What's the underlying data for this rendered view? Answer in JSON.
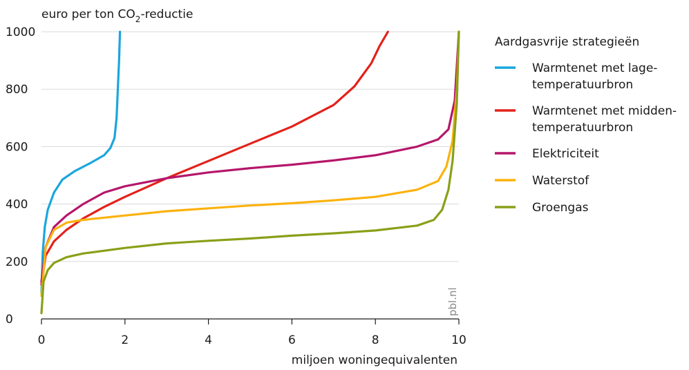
{
  "chart_data": {
    "type": "line",
    "ylabel_prefix": "euro per ton CO",
    "ylabel_sub": "2",
    "ylabel_suffix": "-reductie",
    "xlabel": "miljoen woningequivalenten",
    "source": "pbl.nl",
    "xlim": [
      0,
      10
    ],
    "ylim": [
      0,
      1000
    ],
    "x_ticks": [
      0,
      2,
      4,
      6,
      8,
      10
    ],
    "y_ticks": [
      0,
      200,
      400,
      600,
      800,
      1000
    ],
    "grid": "horizontal",
    "legend_title": "Aardgasvrije strategieën",
    "legend_position": "right",
    "series": [
      {
        "name_lines": [
          "Warmtenet met lage-",
          "temperatuurbron"
        ],
        "color": "#1aa6dd",
        "points": [
          [
            0,
            90
          ],
          [
            0.03,
            230
          ],
          [
            0.08,
            320
          ],
          [
            0.15,
            380
          ],
          [
            0.3,
            440
          ],
          [
            0.5,
            485
          ],
          [
            0.8,
            515
          ],
          [
            1.2,
            545
          ],
          [
            1.5,
            570
          ],
          [
            1.65,
            595
          ],
          [
            1.75,
            630
          ],
          [
            1.8,
            700
          ],
          [
            1.83,
            800
          ],
          [
            1.86,
            900
          ],
          [
            1.88,
            1000
          ]
        ]
      },
      {
        "name_lines": [
          "Warmtenet met midden-",
          "temperatuurbron"
        ],
        "color": "#e3211a",
        "points": [
          [
            0,
            120
          ],
          [
            0.1,
            220
          ],
          [
            0.3,
            270
          ],
          [
            0.6,
            310
          ],
          [
            1,
            350
          ],
          [
            1.5,
            390
          ],
          [
            2,
            425
          ],
          [
            3,
            490
          ],
          [
            4,
            550
          ],
          [
            5,
            610
          ],
          [
            6,
            670
          ],
          [
            7,
            745
          ],
          [
            7.5,
            810
          ],
          [
            7.9,
            890
          ],
          [
            8.1,
            950
          ],
          [
            8.3,
            1000
          ]
        ]
      },
      {
        "name_lines": [
          "Elektriciteit"
        ],
        "color": "#b5166b",
        "points": [
          [
            0,
            130
          ],
          [
            0.1,
            250
          ],
          [
            0.3,
            320
          ],
          [
            0.6,
            360
          ],
          [
            1,
            400
          ],
          [
            1.5,
            440
          ],
          [
            2,
            462
          ],
          [
            3,
            490
          ],
          [
            4,
            510
          ],
          [
            5,
            525
          ],
          [
            6,
            537
          ],
          [
            7,
            552
          ],
          [
            8,
            570
          ],
          [
            9,
            600
          ],
          [
            9.5,
            625
          ],
          [
            9.75,
            660
          ],
          [
            9.9,
            760
          ],
          [
            10,
            1000
          ]
        ]
      },
      {
        "name_lines": [
          "Waterstof"
        ],
        "color": "#fbb20d",
        "points": [
          [
            0,
            80
          ],
          [
            0.1,
            250
          ],
          [
            0.3,
            310
          ],
          [
            0.6,
            335
          ],
          [
            1,
            345
          ],
          [
            2,
            360
          ],
          [
            3,
            375
          ],
          [
            4,
            385
          ],
          [
            5,
            395
          ],
          [
            6,
            403
          ],
          [
            7,
            413
          ],
          [
            8,
            425
          ],
          [
            9,
            450
          ],
          [
            9.5,
            480
          ],
          [
            9.7,
            530
          ],
          [
            9.85,
            620
          ],
          [
            9.95,
            800
          ],
          [
            10,
            1000
          ]
        ]
      },
      {
        "name_lines": [
          "Groengas"
        ],
        "color": "#88a018",
        "points": [
          [
            0,
            20
          ],
          [
            0.05,
            130
          ],
          [
            0.15,
            170
          ],
          [
            0.3,
            195
          ],
          [
            0.6,
            215
          ],
          [
            1,
            228
          ],
          [
            2,
            247
          ],
          [
            3,
            263
          ],
          [
            4,
            272
          ],
          [
            5,
            280
          ],
          [
            6,
            290
          ],
          [
            7,
            298
          ],
          [
            8,
            308
          ],
          [
            9,
            325
          ],
          [
            9.4,
            345
          ],
          [
            9.6,
            380
          ],
          [
            9.75,
            450
          ],
          [
            9.85,
            550
          ],
          [
            9.95,
            750
          ],
          [
            10,
            1000
          ]
        ]
      }
    ]
  }
}
